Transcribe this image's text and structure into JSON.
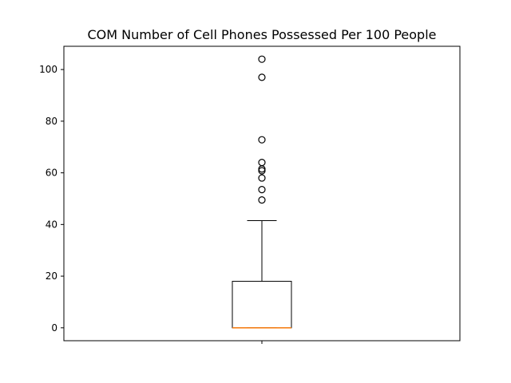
{
  "chart_data": {
    "type": "box",
    "title": "COM Number of Cell Phones Possessed Per 100 People",
    "xlabel": "",
    "ylabel": "",
    "ylim": [
      -5,
      109
    ],
    "yticks": [
      0,
      20,
      40,
      60,
      80,
      100
    ],
    "categories": [
      ""
    ],
    "box": {
      "q1": 0,
      "median": 0,
      "q3": 18,
      "whisker_low": 0,
      "whisker_high": 41.5,
      "outliers": [
        49.5,
        53.5,
        58.0,
        60.8,
        61.5,
        64.0,
        72.8,
        97.0,
        104.0
      ]
    },
    "colors": {
      "box": "#000000",
      "median": "#ff7f0e",
      "outlier": "#000000"
    }
  }
}
